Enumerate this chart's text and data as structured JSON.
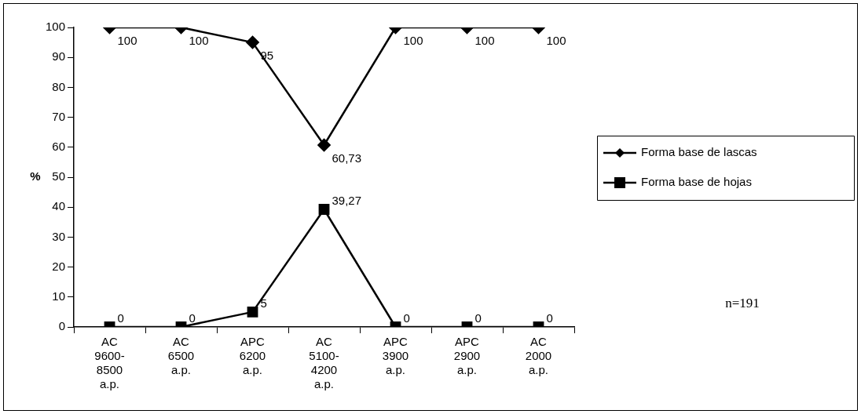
{
  "chart_data": {
    "type": "line",
    "ylabel": "%",
    "categories": [
      "AC\n9600-\n8500\na.p.",
      "AC\n6500\na.p.",
      "APC\n6200\na.p.",
      "AC\n5100-\n4200\na.p.",
      "APC\n3900\na.p.",
      "APC\n2900\na.p.",
      "AC\n2000\na.p."
    ],
    "series": [
      {
        "name": "Forma base de lascas",
        "color": "#000000",
        "marker": "diamond",
        "values": [
          100,
          100,
          95,
          60.73,
          100,
          100,
          100
        ],
        "value_labels": [
          "100",
          "100",
          "95",
          "60,73",
          "100",
          "100",
          "100"
        ]
      },
      {
        "name": "Forma base de hojas",
        "color": "#000000",
        "marker": "square",
        "values": [
          0,
          0,
          5,
          39.27,
          0,
          0,
          0
        ],
        "value_labels": [
          "0",
          "0",
          "5",
          "39,27",
          "0",
          "0",
          "0"
        ]
      }
    ],
    "ylim": [
      0,
      100
    ],
    "yticks": [
      0,
      10,
      20,
      30,
      40,
      50,
      60,
      70,
      80,
      90,
      100
    ],
    "grid": false,
    "legend": "right",
    "line_style": "solid",
    "annotations": [
      "n=191"
    ]
  }
}
